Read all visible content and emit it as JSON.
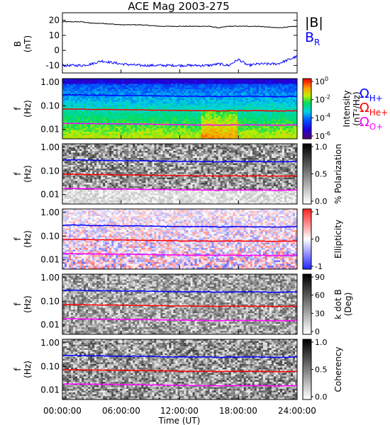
{
  "title": "ACE Mag 2003-275",
  "time_axis": {
    "label": "Time (UT)",
    "ticks": [
      "00:00:00",
      "06:00:00",
      "12:00:00",
      "18:00:00",
      "24:00:00"
    ],
    "range_hours": [
      0,
      24
    ]
  },
  "colors": {
    "H": "#0000ff",
    "He": "#ff0000",
    "O": "#ff00ff",
    "B_mag": "#000000",
    "B_R": "#0000ff"
  },
  "legend": {
    "b_mag": "|B|",
    "b_r": "B",
    "b_r_sub": "R",
    "omega": "Ω",
    "h_sub": "H+",
    "he_sub": "He+",
    "o_sub": "O+"
  },
  "panels": [
    {
      "id": "b-field",
      "ylabel_line1": "B",
      "ylabel_line2": "(nT)",
      "yticks": [
        "20",
        "10",
        "0",
        "-10"
      ]
    },
    {
      "id": "intensity",
      "ylabel_line1": "f",
      "ylabel_line2": "(Hz)",
      "yticks": [
        "1.00",
        "0.10",
        "0.01"
      ],
      "colorbar_type": "rainbow",
      "cb_ticks": [
        {
          "base": "10",
          "exp": "0"
        },
        {
          "base": "10",
          "exp": "-2"
        },
        {
          "base": "10",
          "exp": "-4"
        },
        {
          "base": "10",
          "exp": "-6"
        }
      ],
      "cb_label_line1": "Intensity",
      "cb_label_line2": "(nT²/Hz)"
    },
    {
      "id": "polarization",
      "ylabel_line1": "f",
      "ylabel_line2": "(Hz)",
      "yticks": [
        "1.00",
        "0.10",
        "0.01"
      ],
      "colorbar_type": "gray",
      "cb_ticks": [
        "1.0",
        "0.5",
        "0.0"
      ],
      "cb_label_line1": "% Polarization"
    },
    {
      "id": "ellipticity",
      "ylabel_line1": "f",
      "ylabel_line2": "(Hz)",
      "yticks": [
        "1.00",
        "0.10",
        "0.01"
      ],
      "colorbar_type": "bwr",
      "cb_ticks": [
        "1",
        "0",
        "-1"
      ],
      "cb_label_line1": "Ellipticity"
    },
    {
      "id": "k-dot-b",
      "ylabel_line1": "f",
      "ylabel_line2": "(Hz)",
      "yticks": [
        "1.00",
        "0.10",
        "0.01"
      ],
      "colorbar_type": "gray-inv",
      "cb_ticks": [
        "90",
        "60",
        "30",
        "0"
      ],
      "cb_label_line1": "k dot B",
      "cb_label_line2": "(Deg)"
    },
    {
      "id": "coherency",
      "ylabel_line1": "f",
      "ylabel_line2": "(Hz)",
      "yticks": [
        "1.00",
        "0.10",
        "0.01"
      ],
      "colorbar_type": "gray",
      "cb_ticks": [
        "1.0",
        "0.5",
        "0.0"
      ],
      "cb_label_line1": "Coherency"
    }
  ],
  "chart_data": {
    "type": "line",
    "title": "ACE Mag 2003-275",
    "xlabel": "Time (UT)",
    "x_hours": [
      0,
      2,
      3,
      4,
      6,
      8,
      10,
      12,
      14,
      15,
      16,
      17,
      18,
      19,
      20,
      22,
      24
    ],
    "b_panel": {
      "ylabel": "B (nT)",
      "ylim": [
        -15,
        25
      ],
      "series": [
        {
          "name": "|B|",
          "values": [
            19,
            19,
            18,
            18,
            17,
            17,
            16,
            16,
            16,
            16,
            15,
            16,
            16,
            16,
            16,
            15,
            16
          ]
        },
        {
          "name": "B_R",
          "values": [
            -10,
            -10,
            -9,
            -7,
            -9,
            -10,
            -10,
            -10,
            -10,
            -10,
            -9,
            -10,
            -6,
            -10,
            -9,
            -9,
            -4
          ]
        }
      ]
    },
    "frequency_panels": {
      "yscale": "log",
      "ylim_hz": [
        0.004,
        1.4
      ],
      "series": [
        {
          "name": "Ω_H+",
          "values_hz": [
            0.29,
            0.29,
            0.28,
            0.28,
            0.27,
            0.27,
            0.26,
            0.25,
            0.25,
            0.25,
            0.24,
            0.25,
            0.25,
            0.25,
            0.25,
            0.24,
            0.25
          ]
        },
        {
          "name": "Ω_He+",
          "values_hz": [
            0.072,
            0.072,
            0.07,
            0.07,
            0.068,
            0.067,
            0.065,
            0.063,
            0.062,
            0.062,
            0.06,
            0.062,
            0.062,
            0.062,
            0.062,
            0.06,
            0.062
          ]
        },
        {
          "name": "Ω_O+",
          "values_hz": [
            0.018,
            0.018,
            0.0175,
            0.0175,
            0.017,
            0.0168,
            0.0163,
            0.0158,
            0.0155,
            0.0155,
            0.015,
            0.0155,
            0.0155,
            0.0155,
            0.0155,
            0.015,
            0.0155
          ]
        }
      ]
    }
  }
}
